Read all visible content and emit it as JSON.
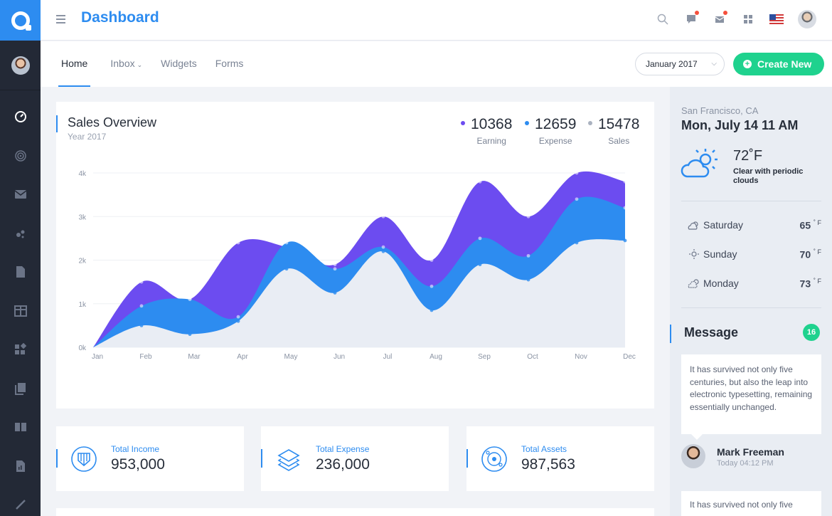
{
  "header": {
    "title": "Dashboard",
    "flag": "us-flag"
  },
  "tabs": [
    {
      "label": "Home"
    },
    {
      "label": "Inbox"
    },
    {
      "label": "Widgets"
    },
    {
      "label": "Forms"
    }
  ],
  "date_filter": "January 2017",
  "create_button": "Create New",
  "sales": {
    "title": "Sales Overview",
    "subtitle": "Year 2017",
    "stats": [
      {
        "value": "10368",
        "label": "Earning",
        "color": "#6c4cf0"
      },
      {
        "value": "12659",
        "label": "Expense",
        "color": "#2d8cf0"
      },
      {
        "value": "15478",
        "label": "Sales",
        "color": "#aab2c0"
      }
    ]
  },
  "chart_data": {
    "type": "area",
    "title": "Sales Overview",
    "categories": [
      "Jan",
      "Feb",
      "Mar",
      "Apr",
      "May",
      "Jun",
      "Jul",
      "Aug",
      "Sep",
      "Oct",
      "Nov",
      "Dec"
    ],
    "ylim": [
      0,
      4000
    ],
    "yticks": [
      0,
      1000,
      2000,
      3000,
      4000
    ],
    "ytick_labels": [
      "0k",
      "1k",
      "2k",
      "3k",
      "4k"
    ],
    "series": [
      {
        "name": "Sales",
        "color": "#e9edf4",
        "values": [
          0,
          500,
          300,
          600,
          1800,
          1250,
          2200,
          850,
          1900,
          1550,
          2400,
          2450
        ]
      },
      {
        "name": "Expense",
        "color": "#2d8cf0",
        "values": [
          0,
          950,
          1100,
          700,
          2400,
          1800,
          2300,
          1400,
          2500,
          2100,
          3400,
          3200
        ]
      },
      {
        "name": "Earning",
        "color": "#6c4cf0",
        "values": [
          0,
          1500,
          1100,
          2400,
          2300,
          1900,
          3000,
          2000,
          3800,
          3000,
          4000,
          3800
        ]
      }
    ]
  },
  "totals": [
    {
      "label": "Total Income",
      "value": "953,000",
      "icon": "shield-icon"
    },
    {
      "label": "Total Expense",
      "value": "236,000",
      "icon": "layers-icon"
    },
    {
      "label": "Total Assets",
      "value": "987,563",
      "icon": "globe-icon"
    }
  ],
  "weather": {
    "city": "San Francisco, CA",
    "datetime": "Mon, July 14 11 AM",
    "temp": "72˚F",
    "condition": "Clear with periodic clouds",
    "forecast": [
      {
        "day": "Saturday",
        "temp": "65",
        "unit": "˚ F",
        "icon": "partly-sunny-icon"
      },
      {
        "day": "Sunday",
        "temp": "70",
        "unit": "˚ F",
        "icon": "sun-icon"
      },
      {
        "day": "Monday",
        "temp": "73",
        "unit": "˚ F",
        "icon": "cloudy-sun-icon"
      }
    ]
  },
  "messages": {
    "title": "Message",
    "count": "16",
    "items": [
      {
        "text": "It has survived not only five centuries, but also the leap into electronic typesetting, remaining essentially unchanged.",
        "sender": "Mark Freeman",
        "time": "Today 04:12 PM"
      },
      {
        "text": "It has survived not only five"
      }
    ]
  }
}
